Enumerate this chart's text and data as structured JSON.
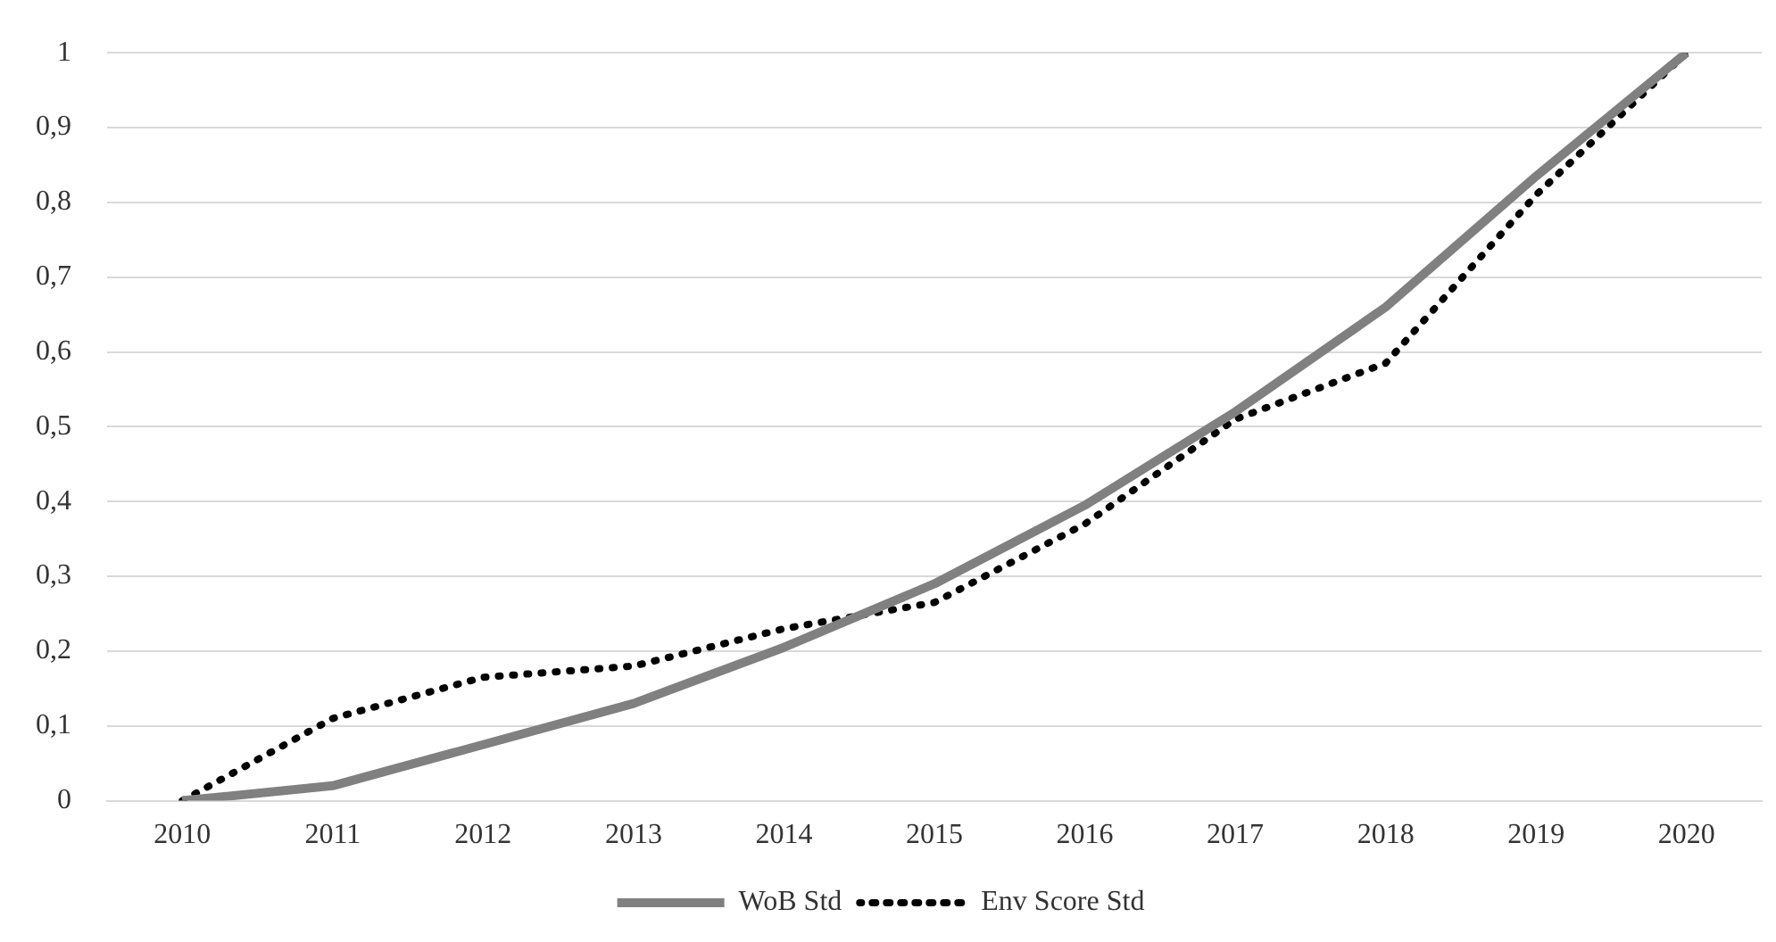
{
  "chart_data": {
    "type": "line",
    "categories": [
      "2010",
      "2011",
      "2012",
      "2013",
      "2014",
      "2015",
      "2016",
      "2017",
      "2018",
      "2019",
      "2020"
    ],
    "series": [
      {
        "name": "WoB Std",
        "color": "#808080",
        "line_style": "solid",
        "values": [
          0,
          0.02,
          0.075,
          0.13,
          0.205,
          0.29,
          0.395,
          0.52,
          0.66,
          0.835,
          1.0
        ]
      },
      {
        "name": "Env Score Std",
        "color": "#000000",
        "line_style": "dotted",
        "values": [
          0,
          0.11,
          0.165,
          0.18,
          0.23,
          0.265,
          0.37,
          0.51,
          0.585,
          0.81,
          1.0
        ]
      }
    ],
    "ylim": [
      0,
      1
    ],
    "yticks": [
      0,
      {
        "value": 0.1,
        "label": "0,1"
      },
      {
        "value": 0.2,
        "label": "0,2"
      },
      {
        "value": 0.3,
        "label": "0,3"
      },
      {
        "value": 0.4,
        "label": "0,4"
      },
      {
        "value": 0.5,
        "label": "0,5"
      },
      {
        "value": 0.6,
        "label": "0,6"
      },
      {
        "value": 0.7,
        "label": "0,7"
      },
      {
        "value": 0.8,
        "label": "0,8"
      },
      {
        "value": 0.9,
        "label": "0,9"
      },
      1
    ],
    "grid": "y",
    "legend": "bottom",
    "marker": "none"
  }
}
